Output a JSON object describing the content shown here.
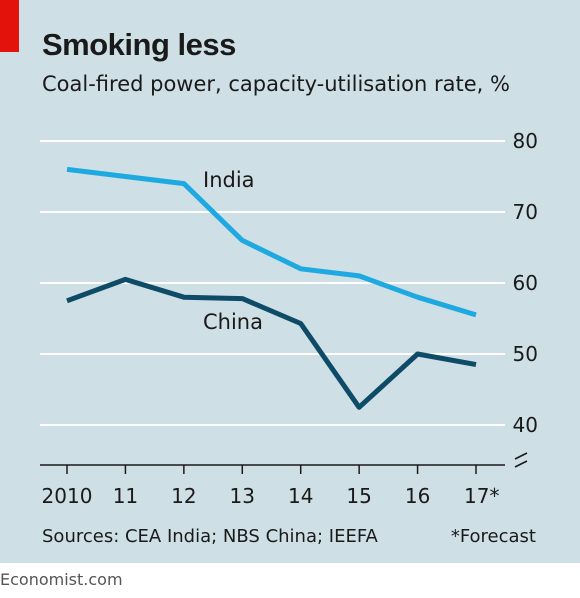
{
  "header": {
    "title": "Smoking less",
    "subtitle": "Coal-fired power, capacity-utilisation rate, %"
  },
  "footer": {
    "sources": "Sources: CEA India; NBS China; IEEFA",
    "footnote": "*Forecast",
    "brand": "Economist.com"
  },
  "colors": {
    "background": "#cfdfe6",
    "accent_tag": "#e3120b",
    "india": "#1fa9e1",
    "china": "#0e4b66",
    "gridline": "#ffffff"
  },
  "chart_data": {
    "type": "line",
    "title": "Smoking less",
    "subtitle": "Coal-fired power, capacity-utilisation rate, %",
    "x": [
      "2010",
      "11",
      "12",
      "13",
      "14",
      "15",
      "16",
      "17*"
    ],
    "series": [
      {
        "name": "India",
        "values": [
          76,
          75,
          74,
          66,
          62,
          61,
          58,
          55.5
        ]
      },
      {
        "name": "China",
        "values": [
          57.5,
          60.5,
          58,
          57.8,
          54.3,
          42.5,
          50,
          48.5
        ]
      }
    ],
    "ylim": [
      40,
      80
    ],
    "yticks": [
      "40",
      "50",
      "60",
      "70",
      "80"
    ],
    "y_axis_side": "right",
    "y_axis_break": true,
    "grid": true,
    "legend": "inline labels"
  }
}
